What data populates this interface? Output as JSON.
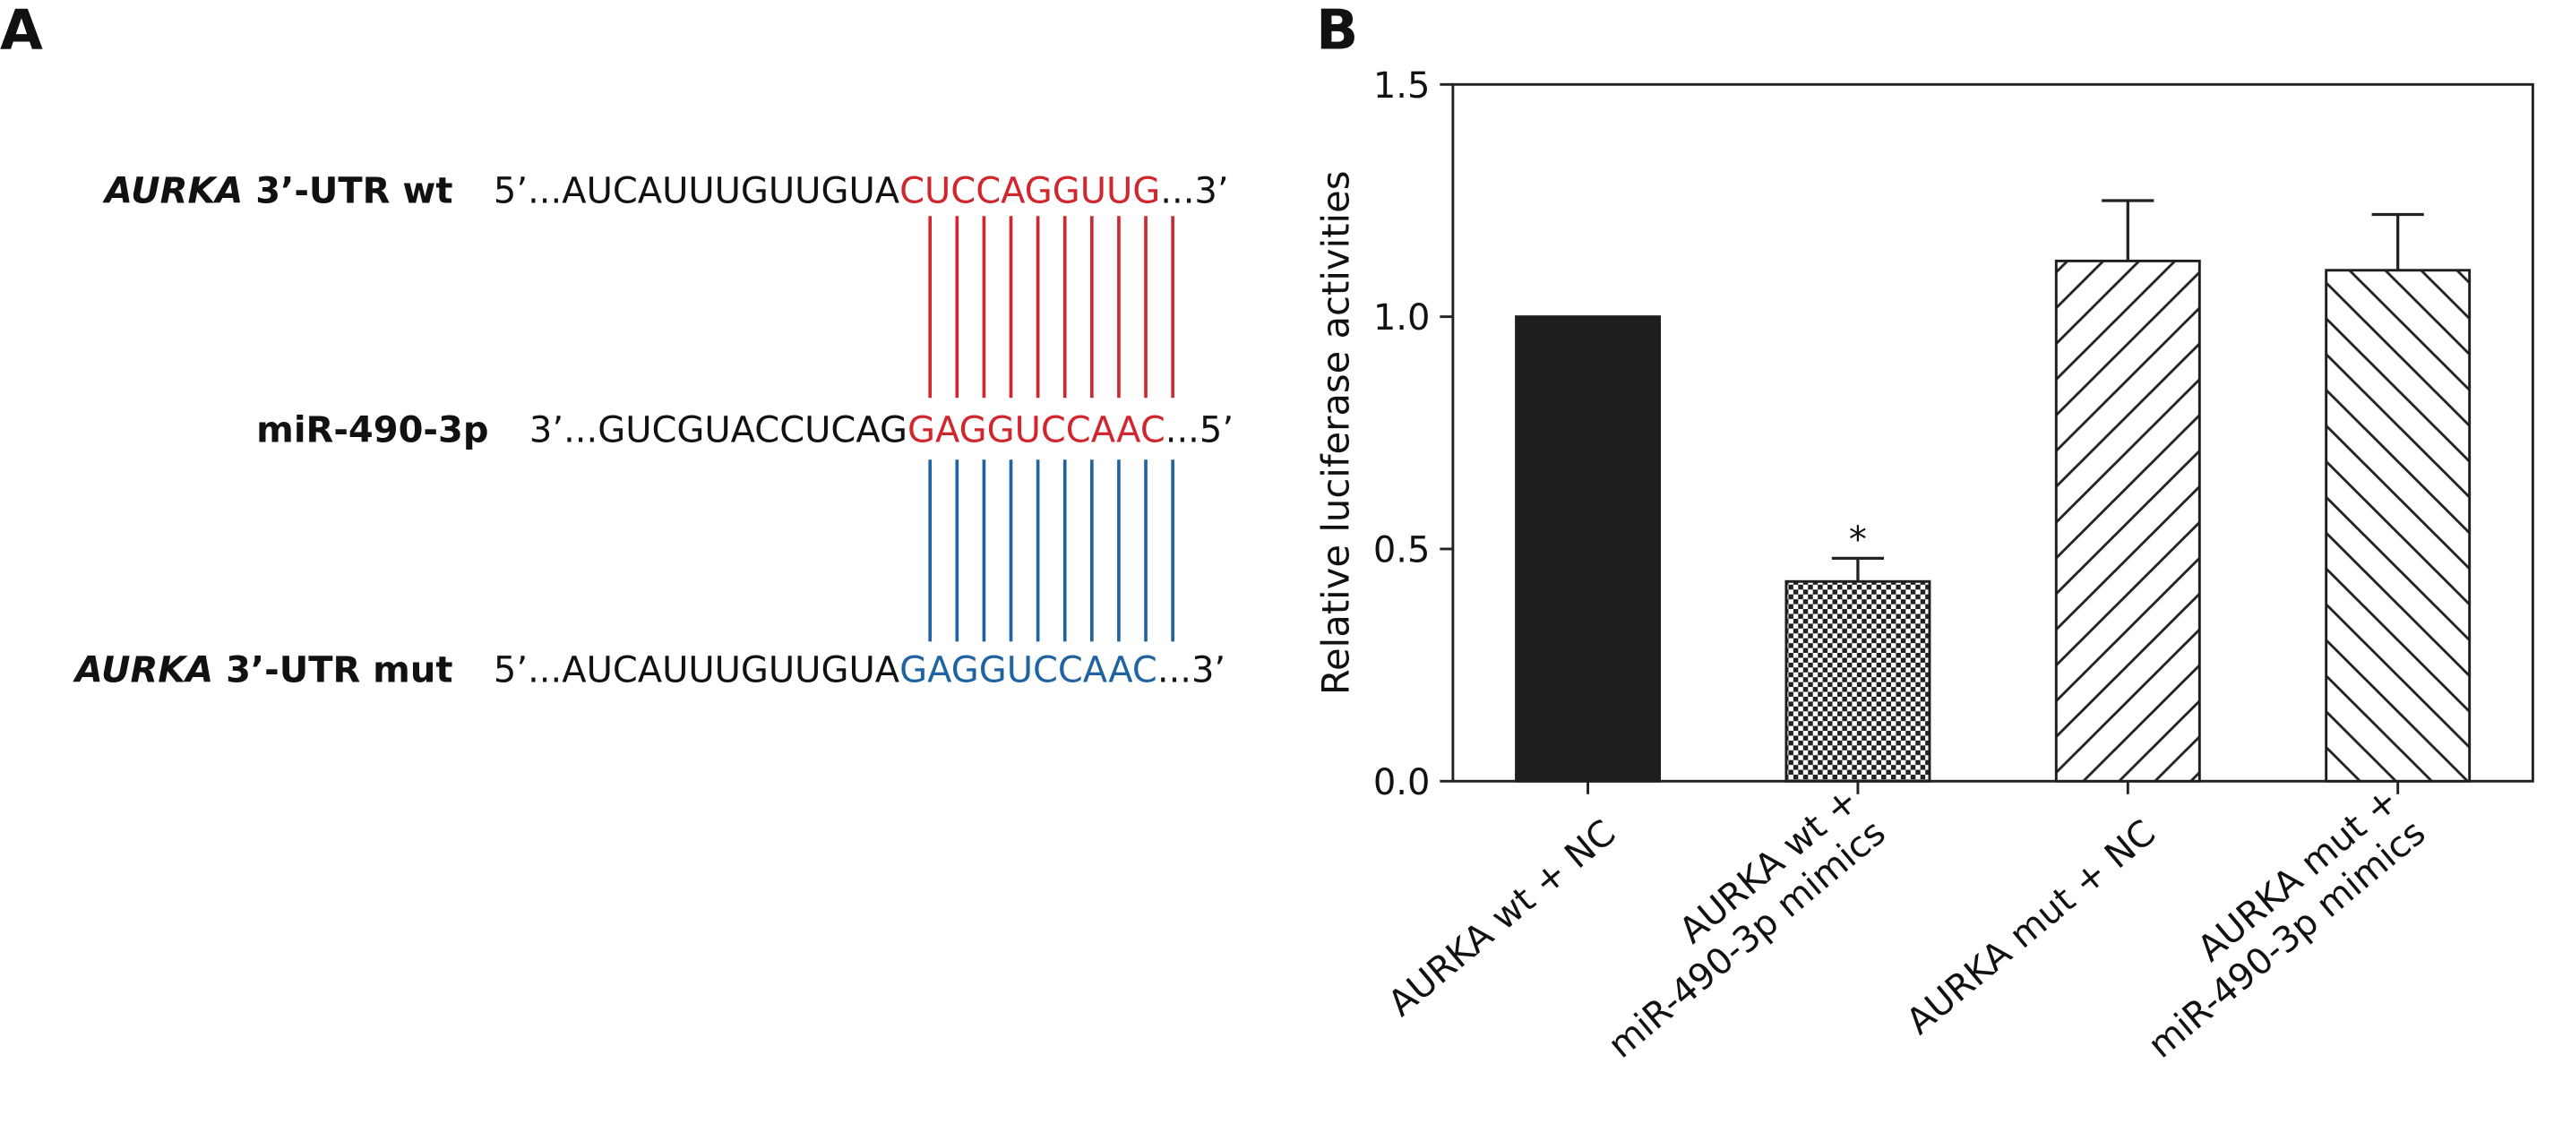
{
  "panel_a": {
    "panel_label": "A",
    "rows": [
      {
        "label_italic": "AURKA",
        "label_rest": " 3’-UTR wt",
        "seq_start": "5’...AUCAUUUGUUGUA",
        "seq_match": "CUCCAGGUUG",
        "seq_end": "...3’",
        "color": "#d0262e"
      },
      {
        "label_italic": "",
        "label_rest": "miR-490-3p",
        "seq_start": "3’...GUCGUACCUCAG",
        "seq_match": "GAGGUCCAAC",
        "seq_end": "...5’",
        "color": "#d0262e"
      },
      {
        "label_italic": "AURKA",
        "label_rest": " 3’-UTR mut",
        "seq_start": "5’...AUCAUUUGUUGUA",
        "seq_match": "GAGGUCCAAC",
        "seq_end": "...3’",
        "color": "#1f63a0"
      }
    ]
  },
  "chart_data": {
    "type": "bar",
    "panel_label": "B",
    "y_label": "Relative luciferase activities",
    "categories": [
      "AURKA wt + NC",
      "AURKA wt +\nmiR-490-3p mimics",
      "AURKA mut + NC",
      "AURKA mut +\nmiR-490-3p mimics"
    ],
    "values": [
      1.0,
      0.43,
      1.12,
      1.1
    ],
    "errors": [
      null,
      0.05,
      0.13,
      0.12
    ],
    "patterns": [
      "solid",
      "checker",
      "diag-up",
      "diag-down"
    ],
    "color": "#1e1e1e",
    "annotations": [
      {
        "index": 1,
        "text": "*"
      }
    ],
    "ylim": [
      0,
      1.5
    ],
    "yticks": [
      {
        "value": 0,
        "label": "0.0"
      },
      {
        "value": 0.5,
        "label": "0.5"
      },
      {
        "value": 1,
        "label": "1.0"
      },
      {
        "value": 1.5,
        "label": "1.5"
      }
    ]
  }
}
